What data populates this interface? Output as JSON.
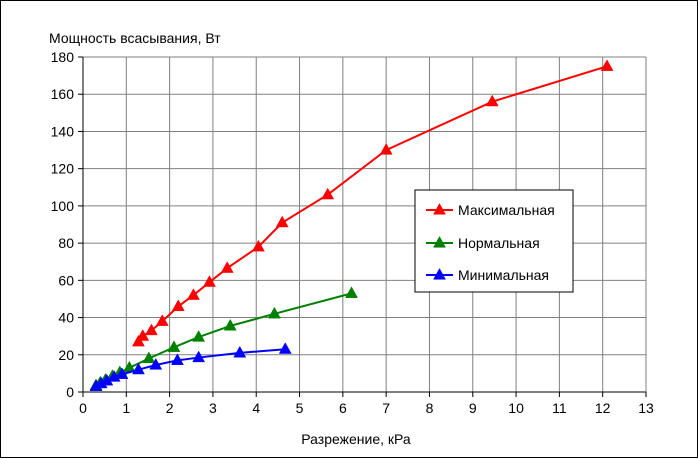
{
  "chart_data": {
    "type": "line",
    "ylabel": "Мощность всасывания, Вт",
    "xlabel": "Разрежение, кРа",
    "xlim": [
      0,
      13
    ],
    "ylim": [
      0,
      180
    ],
    "x_ticks": [
      "0",
      "1",
      "2",
      "3",
      "4",
      "5",
      "6",
      "7",
      "8",
      "9",
      "10",
      "11",
      "12",
      "13"
    ],
    "y_ticks": [
      "0",
      "20",
      "40",
      "60",
      "80",
      "100",
      "120",
      "140",
      "160",
      "180"
    ],
    "grid": true,
    "legend_position": "right",
    "series": [
      {
        "name": "Максимальная",
        "color": "#ff0000",
        "marker": "triangle",
        "points": [
          [
            1.28,
            27
          ],
          [
            1.38,
            30
          ],
          [
            1.58,
            33
          ],
          [
            1.83,
            38
          ],
          [
            2.2,
            46
          ],
          [
            2.55,
            52
          ],
          [
            2.92,
            59
          ],
          [
            3.33,
            66.5
          ],
          [
            4.05,
            78
          ],
          [
            4.6,
            91
          ],
          [
            5.65,
            106
          ],
          [
            7.0,
            130
          ],
          [
            9.45,
            156
          ],
          [
            12.1,
            175
          ]
        ]
      },
      {
        "name": "Нормальная",
        "color": "#008000",
        "marker": "triangle",
        "points": [
          [
            0.3,
            3.5
          ],
          [
            0.4,
            5
          ],
          [
            0.52,
            6.5
          ],
          [
            0.68,
            8.5
          ],
          [
            0.85,
            10.5
          ],
          [
            1.07,
            13
          ],
          [
            1.52,
            18
          ],
          [
            2.1,
            24
          ],
          [
            2.67,
            29.5
          ],
          [
            3.4,
            35.5
          ],
          [
            4.42,
            42
          ],
          [
            6.2,
            53
          ]
        ]
      },
      {
        "name": "Минимальная",
        "color": "#0000ff",
        "marker": "triangle",
        "points": [
          [
            0.3,
            3
          ],
          [
            0.42,
            4.5
          ],
          [
            0.55,
            6
          ],
          [
            0.72,
            8
          ],
          [
            0.9,
            9.5
          ],
          [
            1.28,
            12
          ],
          [
            1.68,
            14.5
          ],
          [
            2.18,
            17
          ],
          [
            2.67,
            18.5
          ],
          [
            3.62,
            21
          ],
          [
            4.67,
            23
          ]
        ]
      }
    ]
  }
}
